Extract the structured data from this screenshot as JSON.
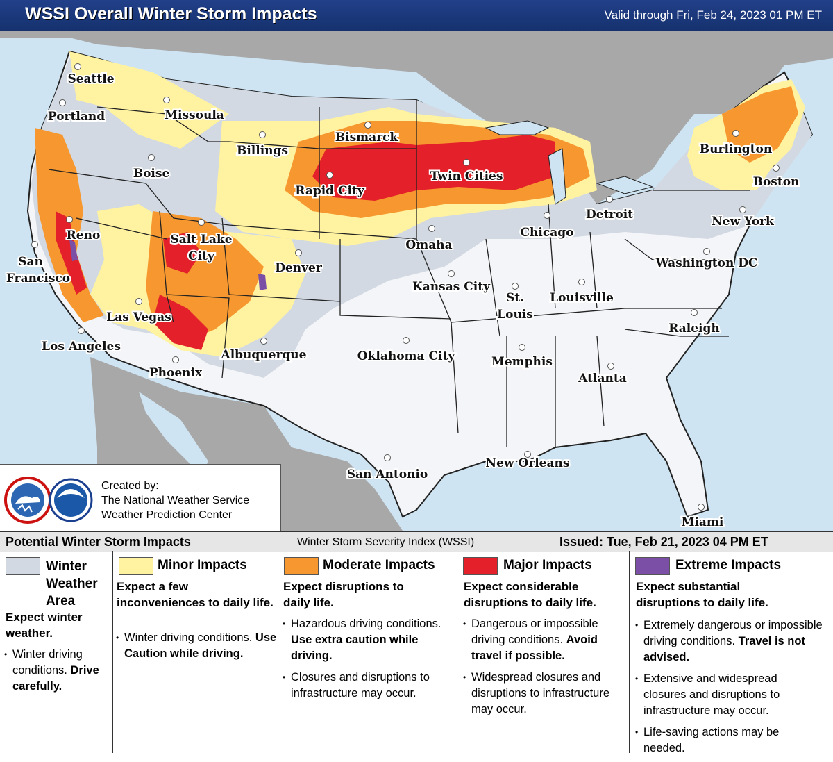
{
  "header": {
    "title": "WSSI Overall Winter Storm Impacts",
    "valid": "Valid through Fri, Feb 24, 2023 01 PM ET"
  },
  "colors": {
    "ocean": "#cfe4f2",
    "land_outside": "#a8a8a8",
    "no_impact": "#f4f5f8",
    "winter_area": "#d2d9e2",
    "minor": "#fff2a0",
    "moderate": "#f6982f",
    "major": "#e4202a",
    "extreme": "#7b4fa6"
  },
  "cities": [
    {
      "name": "Seattle"
    },
    {
      "name": "Portland"
    },
    {
      "name": "Missoula"
    },
    {
      "name": "Billings"
    },
    {
      "name": "Boise"
    },
    {
      "name": "Bismarck"
    },
    {
      "name": "Twin Cities"
    },
    {
      "name": "Rapid City"
    },
    {
      "name": "Burlington"
    },
    {
      "name": "Boston"
    },
    {
      "name": "Detroit"
    },
    {
      "name": "Chicago"
    },
    {
      "name": "Reno"
    },
    {
      "name": "Salt Lake"
    },
    {
      "name": "City"
    },
    {
      "name": "San"
    },
    {
      "name": "Francisco"
    },
    {
      "name": "Denver"
    },
    {
      "name": "Omaha"
    },
    {
      "name": "New York"
    },
    {
      "name": "Washington DC"
    },
    {
      "name": "Kansas City"
    },
    {
      "name": "St."
    },
    {
      "name": "Louis"
    },
    {
      "name": "Louisville"
    },
    {
      "name": "Las Vegas"
    },
    {
      "name": "Raleigh"
    },
    {
      "name": "Los Angeles"
    },
    {
      "name": "Albuquerque"
    },
    {
      "name": "Oklahoma City"
    },
    {
      "name": "Memphis"
    },
    {
      "name": "Phoenix"
    },
    {
      "name": "Atlanta"
    },
    {
      "name": "San Antonio"
    },
    {
      "name": "New Orleans"
    },
    {
      "name": "Miami"
    }
  ],
  "credit": {
    "line1": "Created by:",
    "line2": "The National Weather Service",
    "line3": "Weather Prediction Center",
    "nws_logo": "nws-logo-icon",
    "noaa_logo": "noaa-logo-icon"
  },
  "legend_bar": {
    "left": "Potential Winter Storm Impacts",
    "center": "Winter Storm Severity Index (WSSI)",
    "right": "Issued: Tue, Feb 21, 2023 04 PM ET"
  },
  "legend": {
    "winter": {
      "name1": "Winter",
      "name2": "Weather",
      "name3": "Area",
      "desc": "Expect winter weather.",
      "bullet1_a": "Winter driving conditions.",
      "bullet1_b": "Drive carefully."
    },
    "minor": {
      "name": "Minor Impacts",
      "desc": "Expect a few inconveniences to daily life.",
      "bullet1_a": "Winter driving conditions.",
      "bullet1_b": "Use Caution while driving."
    },
    "moderate": {
      "name": "Moderate Impacts",
      "desc": "Expect disruptions to daily life.",
      "bullet1_a": "Hazardous driving conditions.",
      "bullet1_b": "Use extra caution while driving.",
      "bullet2": "Closures and disruptions to infrastructure may occur."
    },
    "major": {
      "name": "Major Impacts",
      "desc": "Expect considerable disruptions to daily life.",
      "bullet1_a": "Dangerous or impossible driving conditions.",
      "bullet1_b": "Avoid travel if possible.",
      "bullet2": "Widespread closures and disruptions to infrastructure may occur."
    },
    "extreme": {
      "name": "Extreme Impacts",
      "desc": "Expect substantial disruptions to daily life.",
      "bullet1_a": "Extremely dangerous or impossible driving conditions.",
      "bullet1_b": "Travel is not advised.",
      "bullet2": "Extensive and widespread closures and disruptions to infrastructure may occur.",
      "bullet3": "Life-saving actions may be needed."
    }
  }
}
